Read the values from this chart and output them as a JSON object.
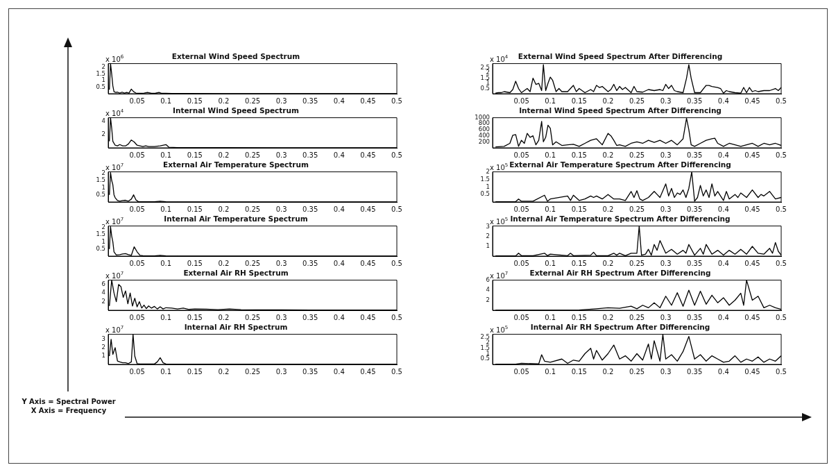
{
  "chart_data": [
    {
      "type": "line",
      "title": "External Wind Speed Spectrum",
      "annotations": [
        "x 10$^{6}$"
      ],
      "color": "#000000",
      "xlim": [
        0,
        0.5
      ],
      "xticks": [
        0.05,
        0.1,
        0.15,
        0.2,
        0.25,
        0.3,
        0.35,
        0.4,
        0.45,
        0.5
      ],
      "ylim": [
        0,
        2.3
      ],
      "yticks": [
        0.5,
        1,
        1.5,
        2
      ],
      "x": [
        0.002,
        0.004,
        0.006,
        0.008,
        0.01,
        0.013,
        0.016,
        0.02,
        0.024,
        0.028,
        0.032,
        0.036,
        0.04,
        0.044,
        0.048,
        0.055,
        0.062,
        0.068,
        0.075,
        0.082,
        0.088,
        0.092,
        0.1,
        0.11,
        0.14,
        0.2,
        0.3,
        0.4,
        0.5
      ],
      "values": [
        0.3,
        2.3,
        1.5,
        0.6,
        0.15,
        0.1,
        0.12,
        0.05,
        0.12,
        0.05,
        0.1,
        0.05,
        0.35,
        0.15,
        0.05,
        0.03,
        0.05,
        0.1,
        0.03,
        0.04,
        0.1,
        0.03,
        0.03,
        0.02,
        0.02,
        0.01,
        0.01,
        0.01,
        0.01
      ]
    },
    {
      "type": "line",
      "title": "External Wind Speed Spectrum After Differencing",
      "annotations": [
        "x 10$^{4}$"
      ],
      "color": "#000000",
      "xlim": [
        0,
        0.5
      ],
      "xticks": [
        0.05,
        0.1,
        0.15,
        0.2,
        0.25,
        0.3,
        0.35,
        0.4,
        0.45,
        0.5
      ],
      "ylim": [
        0,
        2.9
      ],
      "yticks": [
        0.5,
        1,
        1.5,
        2,
        2.5
      ],
      "x": [
        0.005,
        0.01,
        0.015,
        0.02,
        0.025,
        0.03,
        0.035,
        0.04,
        0.045,
        0.05,
        0.055,
        0.06,
        0.065,
        0.07,
        0.075,
        0.08,
        0.085,
        0.088,
        0.092,
        0.096,
        0.1,
        0.104,
        0.11,
        0.115,
        0.12,
        0.13,
        0.14,
        0.145,
        0.15,
        0.16,
        0.17,
        0.175,
        0.18,
        0.185,
        0.19,
        0.2,
        0.205,
        0.21,
        0.215,
        0.22,
        0.225,
        0.23,
        0.24,
        0.245,
        0.25,
        0.26,
        0.27,
        0.28,
        0.29,
        0.295,
        0.3,
        0.305,
        0.31,
        0.315,
        0.32,
        0.33,
        0.336,
        0.34,
        0.344,
        0.35,
        0.36,
        0.37,
        0.375,
        0.38,
        0.39,
        0.395,
        0.4,
        0.405,
        0.41,
        0.42,
        0.43,
        0.435,
        0.44,
        0.445,
        0.45,
        0.455,
        0.46,
        0.47,
        0.48,
        0.49,
        0.495,
        0.5
      ],
      "values": [
        0.05,
        0.1,
        0.1,
        0.2,
        0.15,
        0.1,
        0.4,
        1.2,
        0.5,
        0.1,
        0.3,
        0.5,
        0.2,
        1.5,
        0.9,
        1,
        0.3,
        2.8,
        0.3,
        1,
        1.6,
        1.3,
        0.2,
        0.5,
        0.2,
        0.2,
        0.8,
        0.2,
        0.5,
        0.1,
        0.4,
        0.2,
        0.8,
        0.6,
        0.7,
        0.2,
        0.4,
        0.9,
        0.3,
        0.7,
        0.4,
        0.6,
        0.1,
        0.7,
        0.2,
        0.15,
        0.4,
        0.3,
        0.4,
        0.3,
        0.9,
        0.5,
        0.8,
        0.3,
        0.2,
        0.1,
        1.5,
        2.8,
        1.5,
        0.1,
        0.1,
        0.8,
        0.8,
        0.7,
        0.6,
        0.5,
        0.05,
        0.3,
        0.2,
        0.1,
        0.05,
        0.6,
        0.1,
        0.6,
        0.2,
        0.3,
        0.2,
        0.3,
        0.3,
        0.5,
        0.3,
        0.6
      ]
    },
    {
      "type": "line",
      "title": "Internal Wind Speed Spectrum",
      "annotations": [
        "x 10$^{4}$"
      ],
      "color": "#000000",
      "xlim": [
        0,
        0.5
      ],
      "xticks": [
        0.05,
        0.1,
        0.15,
        0.2,
        0.25,
        0.3,
        0.35,
        0.4,
        0.45,
        0.5
      ],
      "ylim": [
        0,
        4.6
      ],
      "yticks": [
        2,
        4
      ],
      "x": [
        0.002,
        0.004,
        0.006,
        0.008,
        0.012,
        0.016,
        0.02,
        0.025,
        0.03,
        0.035,
        0.04,
        0.045,
        0.05,
        0.055,
        0.06,
        0.065,
        0.07,
        0.08,
        0.09,
        0.1,
        0.105,
        0.12,
        0.2,
        0.3,
        0.4,
        0.5
      ],
      "values": [
        1,
        4.6,
        3,
        1,
        0.4,
        0.3,
        0.5,
        0.3,
        0.3,
        0.6,
        1.2,
        0.9,
        0.4,
        0.3,
        0.2,
        0.3,
        0.2,
        0.2,
        0.3,
        0.5,
        0.1,
        0.05,
        0.03,
        0.02,
        0.02,
        0.02
      ]
    },
    {
      "type": "line",
      "title": "Internal Wind Speed Spectrum After Differencing",
      "color": "#000000",
      "xlim": [
        0,
        0.5
      ],
      "xticks": [
        0.05,
        0.1,
        0.15,
        0.2,
        0.25,
        0.3,
        0.35,
        0.4,
        0.45,
        0.5
      ],
      "ylim": [
        0,
        1000
      ],
      "yticks": [
        200,
        400,
        600,
        800,
        1000
      ],
      "x": [
        0.005,
        0.02,
        0.03,
        0.035,
        0.04,
        0.045,
        0.05,
        0.055,
        0.06,
        0.065,
        0.07,
        0.075,
        0.08,
        0.085,
        0.088,
        0.092,
        0.096,
        0.1,
        0.104,
        0.11,
        0.12,
        0.13,
        0.14,
        0.15,
        0.16,
        0.17,
        0.18,
        0.19,
        0.2,
        0.205,
        0.21,
        0.215,
        0.22,
        0.23,
        0.24,
        0.25,
        0.26,
        0.27,
        0.28,
        0.29,
        0.3,
        0.31,
        0.32,
        0.33,
        0.336,
        0.34,
        0.344,
        0.35,
        0.36,
        0.37,
        0.38,
        0.385,
        0.39,
        0.4,
        0.41,
        0.42,
        0.43,
        0.44,
        0.45,
        0.46,
        0.47,
        0.48,
        0.49,
        0.5
      ],
      "values": [
        30,
        50,
        150,
        420,
        440,
        50,
        250,
        150,
        480,
        350,
        400,
        100,
        250,
        880,
        200,
        350,
        750,
        650,
        100,
        200,
        80,
        100,
        120,
        50,
        150,
        250,
        300,
        100,
        480,
        400,
        250,
        80,
        100,
        50,
        150,
        200,
        150,
        250,
        180,
        250,
        150,
        250,
        100,
        300,
        980,
        600,
        100,
        50,
        150,
        250,
        300,
        320,
        150,
        50,
        150,
        100,
        50,
        100,
        150,
        50,
        150,
        100,
        150,
        80
      ]
    },
    {
      "type": "line",
      "title": "External Air Temperature Spectrum",
      "annotations": [
        "x 10$^{7}$"
      ],
      "color": "#000000",
      "xlim": [
        0,
        0.5
      ],
      "xticks": [
        0.05,
        0.1,
        0.15,
        0.2,
        0.25,
        0.3,
        0.35,
        0.4,
        0.45,
        0.5
      ],
      "ylim": [
        0,
        2.1
      ],
      "yticks": [
        0.5,
        1,
        1.5,
        2
      ],
      "x": [
        0.002,
        0.004,
        0.006,
        0.008,
        0.01,
        0.012,
        0.016,
        0.02,
        0.025,
        0.03,
        0.035,
        0.04,
        0.044,
        0.048,
        0.052,
        0.06,
        0.07,
        0.08,
        0.09,
        0.1,
        0.12,
        0.2,
        0.3,
        0.4,
        0.5
      ],
      "values": [
        0.5,
        2.05,
        1.5,
        1.2,
        0.5,
        0.3,
        0.1,
        0.05,
        0.1,
        0.12,
        0.06,
        0.2,
        0.5,
        0.15,
        0.03,
        0.02,
        0.02,
        0.02,
        0.05,
        0.02,
        0.01,
        0.01,
        0.01,
        0.01,
        0.01
      ]
    },
    {
      "type": "line",
      "title": "External Air Temperature Spectrum After Differencing",
      "annotations": [
        "x 10$^{5}$"
      ],
      "color": "#000000",
      "xlim": [
        0,
        0.5
      ],
      "xticks": [
        0.05,
        0.1,
        0.15,
        0.2,
        0.25,
        0.3,
        0.35,
        0.4,
        0.45,
        0.5
      ],
      "ylim": [
        0,
        2
      ],
      "yticks": [
        0.5,
        1,
        1.5,
        2
      ],
      "x": [
        0.005,
        0.04,
        0.045,
        0.05,
        0.07,
        0.09,
        0.095,
        0.1,
        0.13,
        0.135,
        0.14,
        0.15,
        0.16,
        0.17,
        0.175,
        0.18,
        0.19,
        0.2,
        0.21,
        0.22,
        0.23,
        0.24,
        0.245,
        0.25,
        0.255,
        0.26,
        0.27,
        0.28,
        0.285,
        0.29,
        0.3,
        0.305,
        0.31,
        0.315,
        0.32,
        0.325,
        0.33,
        0.335,
        0.34,
        0.345,
        0.35,
        0.355,
        0.36,
        0.365,
        0.37,
        0.375,
        0.38,
        0.385,
        0.39,
        0.4,
        0.405,
        0.41,
        0.42,
        0.425,
        0.43,
        0.44,
        0.45,
        0.46,
        0.465,
        0.47,
        0.48,
        0.49,
        0.5
      ],
      "values": [
        0.02,
        0.02,
        0.2,
        0.05,
        0.05,
        0.45,
        0.05,
        0.2,
        0.4,
        0.1,
        0.45,
        0.1,
        0.2,
        0.4,
        0.3,
        0.4,
        0.2,
        0.5,
        0.2,
        0.2,
        0.1,
        0.7,
        0.3,
        0.75,
        0.2,
        0.1,
        0.3,
        0.7,
        0.5,
        0.3,
        1.2,
        0.4,
        0.9,
        0.3,
        0.6,
        0.5,
        0.8,
        0.3,
        0.9,
        2,
        0.05,
        0.3,
        1.1,
        0.4,
        0.8,
        0.3,
        1.2,
        0.4,
        0.7,
        0.1,
        0.7,
        0.2,
        0.5,
        0.3,
        0.6,
        0.3,
        0.8,
        0.3,
        0.5,
        0.4,
        0.7,
        0.2,
        0.3
      ]
    },
    {
      "type": "line",
      "title": "Internal Air Temperature Spectrum",
      "annotations": [
        "x 10$^{7}$"
      ],
      "color": "#000000",
      "xlim": [
        0,
        0.5
      ],
      "xticks": [
        0.05,
        0.1,
        0.15,
        0.2,
        0.25,
        0.3,
        0.35,
        0.4,
        0.45,
        0.5
      ],
      "ylim": [
        0,
        2.1
      ],
      "yticks": [
        0.5,
        1,
        1.5,
        2
      ],
      "x": [
        0.002,
        0.004,
        0.006,
        0.008,
        0.01,
        0.014,
        0.02,
        0.025,
        0.03,
        0.035,
        0.04,
        0.045,
        0.05,
        0.055,
        0.06,
        0.07,
        0.08,
        0.09,
        0.1,
        0.12,
        0.2,
        0.3,
        0.4,
        0.5
      ],
      "values": [
        0.5,
        2.05,
        1.4,
        1,
        0.3,
        0.08,
        0.1,
        0.15,
        0.18,
        0.1,
        0.05,
        0.65,
        0.3,
        0.05,
        0.03,
        0.02,
        0.02,
        0.05,
        0.02,
        0.01,
        0.01,
        0.01,
        0.01,
        0.01
      ]
    },
    {
      "type": "line",
      "title": "Internal Air Temperature Spectrum After Differencing",
      "annotations": [
        "x 10$^{5}$"
      ],
      "color": "#000000",
      "xlim": [
        0,
        0.5
      ],
      "xticks": [
        0.05,
        0.1,
        0.15,
        0.2,
        0.25,
        0.3,
        0.35,
        0.4,
        0.45,
        0.5
      ],
      "ylim": [
        0,
        3.1
      ],
      "yticks": [
        1,
        2,
        3
      ],
      "x": [
        0.005,
        0.04,
        0.045,
        0.05,
        0.07,
        0.09,
        0.095,
        0.1,
        0.13,
        0.135,
        0.14,
        0.17,
        0.175,
        0.18,
        0.2,
        0.21,
        0.215,
        0.22,
        0.23,
        0.24,
        0.25,
        0.254,
        0.258,
        0.265,
        0.27,
        0.275,
        0.28,
        0.285,
        0.29,
        0.3,
        0.31,
        0.32,
        0.33,
        0.335,
        0.34,
        0.35,
        0.36,
        0.365,
        0.37,
        0.38,
        0.39,
        0.4,
        0.41,
        0.42,
        0.43,
        0.44,
        0.45,
        0.46,
        0.47,
        0.48,
        0.485,
        0.49,
        0.495,
        0.5
      ],
      "values": [
        0.02,
        0.02,
        0.3,
        0.05,
        0.05,
        0.3,
        0.05,
        0.2,
        0.05,
        0.3,
        0.05,
        0.1,
        0.4,
        0.05,
        0.05,
        0.3,
        0.1,
        0.3,
        0.05,
        0.3,
        0.3,
        3.1,
        0.1,
        0.2,
        0.7,
        0.1,
        1.2,
        0.6,
        1.6,
        0.3,
        0.7,
        0.2,
        0.6,
        0.3,
        1.2,
        0.1,
        0.8,
        0.2,
        1.2,
        0.2,
        0.6,
        0.1,
        0.6,
        0.2,
        0.7,
        0.2,
        1,
        0.3,
        0.2,
        0.8,
        0.3,
        1.4,
        0.5,
        0.1
      ]
    },
    {
      "type": "line",
      "title": "External Air RH Spectrum",
      "annotations": [
        "x 10$^{7}$"
      ],
      "color": "#000000",
      "xlim": [
        0,
        0.5
      ],
      "xticks": [
        0.05,
        0.1,
        0.15,
        0.2,
        0.25,
        0.3,
        0.35,
        0.4,
        0.45,
        0.5
      ],
      "ylim": [
        0,
        7
      ],
      "yticks": [
        2,
        4,
        6
      ],
      "x": [
        0.002,
        0.006,
        0.01,
        0.014,
        0.018,
        0.022,
        0.026,
        0.03,
        0.034,
        0.038,
        0.042,
        0.046,
        0.05,
        0.054,
        0.058,
        0.062,
        0.066,
        0.07,
        0.075,
        0.08,
        0.085,
        0.09,
        0.095,
        0.1,
        0.11,
        0.12,
        0.13,
        0.14,
        0.15,
        0.17,
        0.19,
        0.21,
        0.23,
        0.26,
        0.3,
        0.35,
        0.4,
        0.45,
        0.5
      ],
      "values": [
        1,
        7,
        4,
        2,
        6,
        5.5,
        3,
        4.5,
        1.5,
        4,
        1,
        2.8,
        0.8,
        2,
        0.5,
        1.2,
        0.4,
        1,
        0.5,
        0.9,
        0.3,
        0.8,
        0.3,
        0.6,
        0.5,
        0.3,
        0.5,
        0.2,
        0.3,
        0.25,
        0.15,
        0.3,
        0.15,
        0.1,
        0.1,
        0.05,
        0.05,
        0.05,
        0.05
      ]
    },
    {
      "type": "line",
      "title": "External Air RH Spectrum After Differencing",
      "annotations": [
        "x 10$^{7}$"
      ],
      "color": "#000000",
      "xlim": [
        0,
        0.5
      ],
      "xticks": [
        0.05,
        0.1,
        0.15,
        0.2,
        0.25,
        0.3,
        0.35,
        0.4,
        0.45,
        0.5
      ],
      "ylim": [
        0,
        6
      ],
      "yticks": [
        2,
        4,
        6
      ],
      "x": [
        0.005,
        0.1,
        0.15,
        0.18,
        0.2,
        0.22,
        0.24,
        0.25,
        0.26,
        0.27,
        0.28,
        0.29,
        0.3,
        0.31,
        0.32,
        0.33,
        0.34,
        0.35,
        0.36,
        0.37,
        0.38,
        0.39,
        0.4,
        0.41,
        0.42,
        0.43,
        0.435,
        0.44,
        0.45,
        0.46,
        0.47,
        0.48,
        0.49,
        0.5
      ],
      "values": [
        0.02,
        0.02,
        0.05,
        0.3,
        0.5,
        0.4,
        0.8,
        0.3,
        1,
        0.5,
        1.5,
        0.5,
        2.8,
        1,
        3.5,
        0.8,
        4,
        1,
        3.8,
        1.2,
        3,
        1.5,
        2.5,
        1,
        2,
        3.4,
        1,
        6,
        2,
        2.8,
        0.5,
        1,
        0.5,
        0.2
      ]
    },
    {
      "type": "line",
      "title": "Internal Air RH Spectrum",
      "annotations": [
        "x 10$^{7}$"
      ],
      "color": "#000000",
      "xlim": [
        0,
        0.5
      ],
      "xticks": [
        0.05,
        0.1,
        0.15,
        0.2,
        0.25,
        0.3,
        0.35,
        0.4,
        0.45,
        0.5
      ],
      "ylim": [
        0,
        3.6
      ],
      "yticks": [
        1,
        2,
        3
      ],
      "x": [
        0.002,
        0.005,
        0.008,
        0.012,
        0.016,
        0.02,
        0.025,
        0.03,
        0.035,
        0.04,
        0.043,
        0.046,
        0.05,
        0.055,
        0.06,
        0.07,
        0.08,
        0.085,
        0.09,
        0.095,
        0.1,
        0.12,
        0.2,
        0.3,
        0.4,
        0.5
      ],
      "values": [
        1,
        3,
        1.2,
        2,
        0.4,
        0.3,
        0.2,
        0.2,
        0.1,
        0.3,
        3.6,
        1,
        0.1,
        0.05,
        0.05,
        0.05,
        0.05,
        0.3,
        0.8,
        0.2,
        0.05,
        0.02,
        0.02,
        0.02,
        0.02,
        0.02
      ]
    },
    {
      "type": "line",
      "title": "Internal Air RH Spectrum After Differencing",
      "annotations": [
        "x 10$^{5}$"
      ],
      "color": "#000000",
      "xlim": [
        0,
        0.5
      ],
      "xticks": [
        0.05,
        0.1,
        0.15,
        0.2,
        0.25,
        0.3,
        0.35,
        0.4,
        0.45,
        0.5
      ],
      "ylim": [
        0,
        2.8
      ],
      "yticks": [
        0.5,
        1,
        1.5,
        2,
        2.5
      ],
      "x": [
        0.005,
        0.04,
        0.05,
        0.08,
        0.085,
        0.09,
        0.1,
        0.12,
        0.13,
        0.14,
        0.15,
        0.16,
        0.17,
        0.175,
        0.18,
        0.19,
        0.2,
        0.21,
        0.22,
        0.23,
        0.24,
        0.25,
        0.26,
        0.27,
        0.275,
        0.28,
        0.29,
        0.295,
        0.3,
        0.31,
        0.32,
        0.33,
        0.34,
        0.35,
        0.36,
        0.37,
        0.38,
        0.39,
        0.4,
        0.41,
        0.42,
        0.43,
        0.44,
        0.45,
        0.46,
        0.47,
        0.48,
        0.49,
        0.5
      ],
      "values": [
        0.02,
        0.02,
        0.1,
        0.05,
        0.9,
        0.3,
        0.2,
        0.5,
        0.1,
        0.4,
        0.3,
        1,
        1.5,
        0.5,
        1.3,
        0.4,
        1,
        1.8,
        0.5,
        0.8,
        0.3,
        1,
        0.4,
        1.9,
        0.5,
        2.2,
        0.3,
        2.8,
        0.5,
        0.9,
        0.3,
        1.2,
        2.6,
        0.5,
        0.9,
        0.3,
        0.8,
        0.5,
        0.2,
        0.3,
        0.8,
        0.2,
        0.5,
        0.3,
        0.7,
        0.2,
        0.5,
        0.3,
        0.8
      ]
    },
    {
      "type": "other",
      "annotations": [
        "Y Axis = Spectral Power",
        "X Axis = Frequency"
      ]
    }
  ]
}
